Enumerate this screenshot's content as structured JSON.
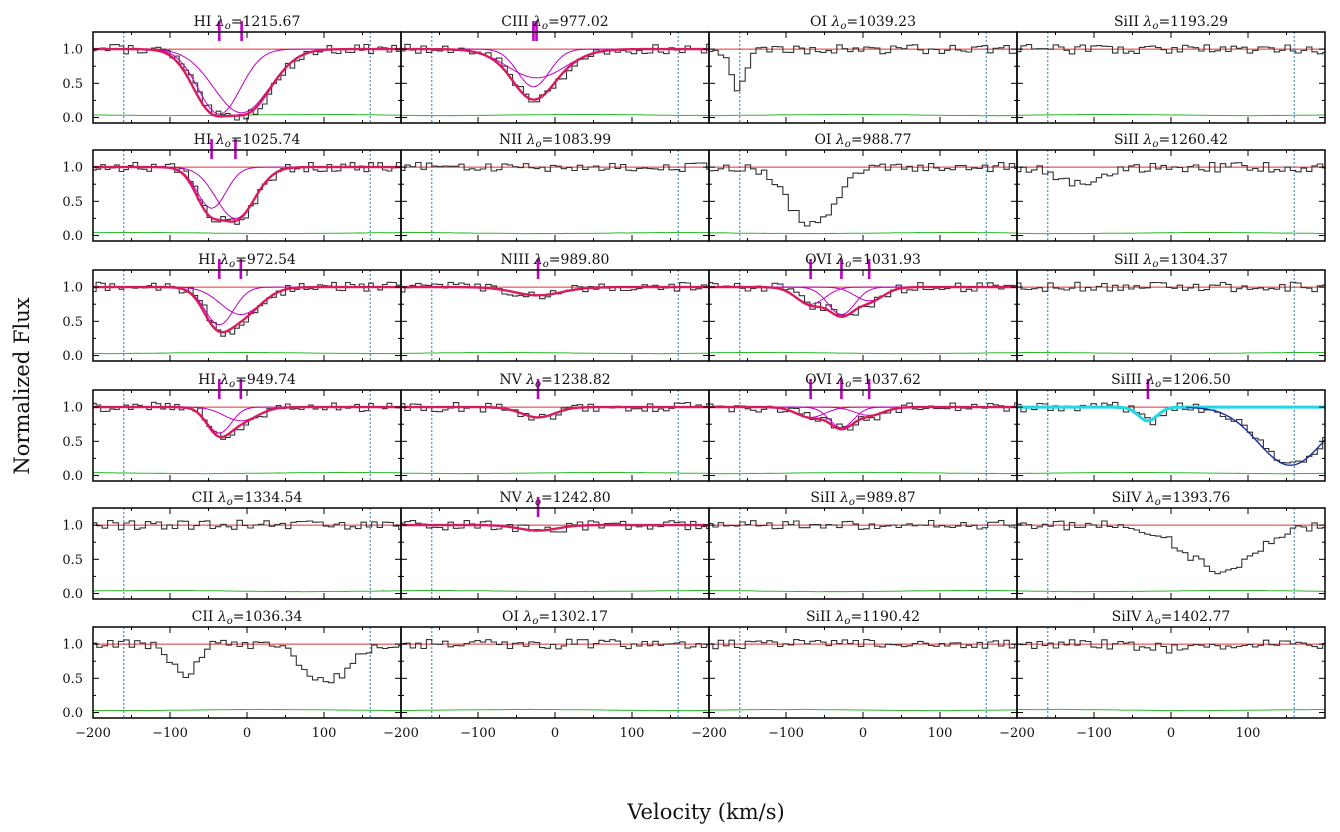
{
  "figure": {
    "ylabel": "Normalized Flux",
    "xlabel": "Velocity (km/s)"
  },
  "chart_data": {
    "type": "line",
    "description_axes": "shared",
    "xlim": [
      -200,
      200
    ],
    "ylim": [
      -0.08,
      1.25
    ],
    "ytick_labels": [
      "0.0",
      "0.5",
      "1.0"
    ],
    "xtick_labels": [
      "−200",
      "−100",
      "0",
      "100"
    ],
    "integration_limits_kms": [
      -160,
      160
    ],
    "colors": {
      "data": "#333333",
      "continuum": "#e03030",
      "error": "#2db82d",
      "total_model": "#d81b60",
      "component": "#c000c0",
      "limits": "#2a74b5",
      "blend_model": "#20d8e8",
      "blend_overlay": "#1a2f9c"
    },
    "panels": [
      {
        "ion": "HI",
        "lambda": "1215.67",
        "model": true,
        "comps": [
          {
            "v": -36,
            "depth": 0.95,
            "b": 44
          },
          {
            "v": -7,
            "depth": 0.93,
            "b": 58
          }
        ]
      },
      {
        "ion": "CIII",
        "lambda": "977.02",
        "model": true,
        "comps": [
          {
            "v": -28,
            "depth": 0.55,
            "b": 33
          },
          {
            "v": -24,
            "depth": 0.42,
            "b": 60
          }
        ]
      },
      {
        "ion": "OI",
        "lambda": "1039.23",
        "model": false,
        "absorb": [
          {
            "v": -165,
            "depth": 0.6,
            "w": 10
          }
        ]
      },
      {
        "ion": "SiII",
        "lambda": "1193.29",
        "model": false,
        "absorb": []
      },
      {
        "ion": "HI",
        "lambda": "1025.74",
        "model": true,
        "comps": [
          {
            "v": -46,
            "depth": 0.6,
            "b": 30
          },
          {
            "v": -15,
            "depth": 0.75,
            "b": 40
          }
        ]
      },
      {
        "ion": "NII",
        "lambda": "1083.99",
        "model": false,
        "absorb": []
      },
      {
        "ion": "OI",
        "lambda": "988.77",
        "model": false,
        "absorb": [
          {
            "v": -70,
            "depth": 0.85,
            "w": 30
          }
        ]
      },
      {
        "ion": "SiII",
        "lambda": "1260.42",
        "model": false,
        "absorb": [
          {
            "v": -120,
            "depth": 0.25,
            "w": 30
          }
        ]
      },
      {
        "ion": "HI",
        "lambda": "972.54",
        "model": true,
        "comps": [
          {
            "v": -36,
            "depth": 0.55,
            "b": 30
          },
          {
            "v": -8,
            "depth": 0.4,
            "b": 42
          }
        ]
      },
      {
        "ion": "NIII",
        "lambda": "989.80",
        "model": true,
        "comps": [
          {
            "v": -22,
            "depth": 0.12,
            "b": 50
          }
        ]
      },
      {
        "ion": "OVI",
        "lambda": "1031.93",
        "model": true,
        "comps": [
          {
            "v": -68,
            "depth": 0.25,
            "b": 30
          },
          {
            "v": -28,
            "depth": 0.4,
            "b": 28
          },
          {
            "v": 8,
            "depth": 0.2,
            "b": 30
          }
        ]
      },
      {
        "ion": "SiII",
        "lambda": "1304.37",
        "model": false,
        "absorb": []
      },
      {
        "ion": "HI",
        "lambda": "949.74",
        "model": true,
        "comps": [
          {
            "v": -36,
            "depth": 0.38,
            "b": 25
          },
          {
            "v": -8,
            "depth": 0.2,
            "b": 35
          }
        ]
      },
      {
        "ion": "NV",
        "lambda": "1238.82",
        "model": true,
        "comps": [
          {
            "v": -22,
            "depth": 0.15,
            "b": 35
          }
        ]
      },
      {
        "ion": "OVI",
        "lambda": "1037.62",
        "model": true,
        "comps": [
          {
            "v": -68,
            "depth": 0.15,
            "b": 30
          },
          {
            "v": -28,
            "depth": 0.3,
            "b": 25
          },
          {
            "v": 8,
            "depth": 0.12,
            "b": 30
          }
        ]
      },
      {
        "ion": "SiIII",
        "lambda": "1206.50",
        "model": true,
        "blend": {
          "v": 155,
          "depth": 0.85,
          "w": 42
        },
        "comps": [
          {
            "v": -30,
            "depth": 0.2,
            "b": 20
          }
        ]
      },
      {
        "ion": "CII",
        "lambda": "1334.54",
        "model": false,
        "absorb": []
      },
      {
        "ion": "NV",
        "lambda": "1242.80",
        "model": true,
        "comps": [
          {
            "v": -22,
            "depth": 0.08,
            "b": 40
          }
        ]
      },
      {
        "ion": "SiII",
        "lambda": "989.87",
        "model": false,
        "absorb": []
      },
      {
        "ion": "SiIV",
        "lambda": "1393.76",
        "model": false,
        "absorb": [
          {
            "v": 60,
            "depth": 0.65,
            "w": 45
          }
        ]
      },
      {
        "ion": "CII",
        "lambda": "1036.34",
        "model": false,
        "absorb": [
          {
            "v": -85,
            "depth": 0.5,
            "w": 15
          },
          {
            "v": 100,
            "depth": 0.55,
            "w": 28
          }
        ]
      },
      {
        "ion": "OI",
        "lambda": "1302.17",
        "model": false,
        "absorb": []
      },
      {
        "ion": "SiII",
        "lambda": "1190.42",
        "model": false,
        "absorb": []
      },
      {
        "ion": "SiIV",
        "lambda": "1402.77",
        "model": false,
        "absorb": [
          {
            "v": 20,
            "depth": 0.08,
            "w": 45
          }
        ]
      }
    ]
  }
}
